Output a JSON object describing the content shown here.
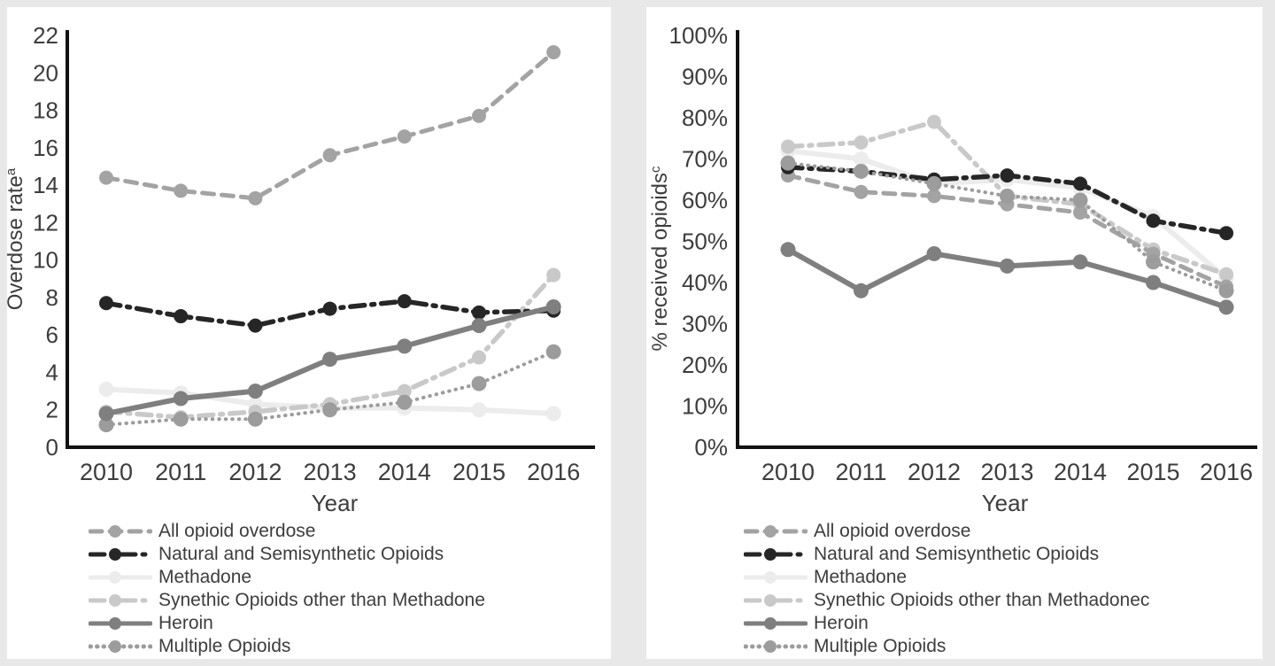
{
  "page": {
    "background_color": "#e8e8e8",
    "panel_color": "#ffffff",
    "axis_color": "#111111",
    "text_color": "#3d3d3d"
  },
  "chart_data": [
    {
      "type": "line",
      "title": "",
      "xlabel": "Year",
      "ylabel": "Overdose rate",
      "ylabel_superscript": "a",
      "categories": [
        "2010",
        "2011",
        "2012",
        "2013",
        "2014",
        "2015",
        "2016"
      ],
      "ylim": [
        0,
        22
      ],
      "ytick_step": 2,
      "yticks": [
        "22",
        "20",
        "18",
        "16",
        "14",
        "12",
        "10",
        "8",
        "6",
        "4",
        "2",
        "0"
      ],
      "grid": false,
      "legend_position": "bottom-left",
      "series": [
        {
          "name": "All opioid overdose",
          "color": "#a3a3a3",
          "line": "dashed",
          "values": [
            14.4,
            13.7,
            13.3,
            15.6,
            16.6,
            17.7,
            21.1
          ]
        },
        {
          "name": "Natural and Semisynthetic Opioids",
          "color": "#262626",
          "line": "dashdot",
          "values": [
            7.7,
            7.0,
            6.5,
            7.4,
            7.8,
            7.2,
            7.3
          ]
        },
        {
          "name": "Methadone",
          "color": "#ececec",
          "line": "solid",
          "values": [
            3.1,
            2.9,
            2.3,
            2.1,
            2.1,
            2.0,
            1.8
          ]
        },
        {
          "name": "Synethic Opioids other than Methadone",
          "color": "#c9c9c9",
          "line": "dashdot",
          "values": [
            1.9,
            1.6,
            1.9,
            2.3,
            3.0,
            4.8,
            9.2
          ]
        },
        {
          "name": "Heroin",
          "color": "#7f7f7f",
          "line": "solid",
          "values": [
            1.8,
            2.6,
            3.0,
            4.7,
            5.4,
            6.5,
            7.5
          ]
        },
        {
          "name": "Multiple Opioids",
          "color": "#9c9c9c",
          "line": "dotted",
          "values": [
            1.2,
            1.5,
            1.5,
            2.0,
            2.4,
            3.4,
            5.1
          ]
        }
      ]
    },
    {
      "type": "line",
      "title": "",
      "xlabel": "Year",
      "ylabel": "% received opioids",
      "ylabel_superscript": "c",
      "categories": [
        "2010",
        "2011",
        "2012",
        "2013",
        "2014",
        "2015",
        "2016"
      ],
      "ylim": [
        0,
        100
      ],
      "ytick_step": 10,
      "yticks": [
        "100%",
        "90%",
        "80%",
        "70%",
        "60%",
        "50%",
        "40%",
        "30%",
        "20%",
        "10%",
        "0%"
      ],
      "grid": false,
      "legend_position": "bottom-left",
      "series": [
        {
          "name": "All opioid overdose",
          "color": "#a3a3a3",
          "line": "dashed",
          "values": [
            66,
            62,
            61,
            59,
            57,
            47,
            39
          ]
        },
        {
          "name": "Natural and Semisynthetic Opioids",
          "color": "#262626",
          "line": "dashdot",
          "values": [
            68,
            67,
            65,
            66,
            64,
            55,
            52
          ]
        },
        {
          "name": "Methadone",
          "color": "#ececec",
          "line": "solid",
          "values": [
            72,
            70,
            64,
            65,
            63,
            56,
            41
          ]
        },
        {
          "name": "Synethic Opioids other than Methadonec",
          "color": "#c9c9c9",
          "line": "dashdot",
          "values": [
            73,
            74,
            79,
            61,
            59,
            48,
            42
          ]
        },
        {
          "name": "Heroin",
          "color": "#7f7f7f",
          "line": "solid",
          "values": [
            48,
            38,
            47,
            44,
            45,
            40,
            34
          ]
        },
        {
          "name": "Multiple Opioids",
          "color": "#9c9c9c",
          "line": "dotted",
          "values": [
            69,
            67,
            64,
            61,
            60,
            45,
            38
          ]
        }
      ]
    }
  ]
}
